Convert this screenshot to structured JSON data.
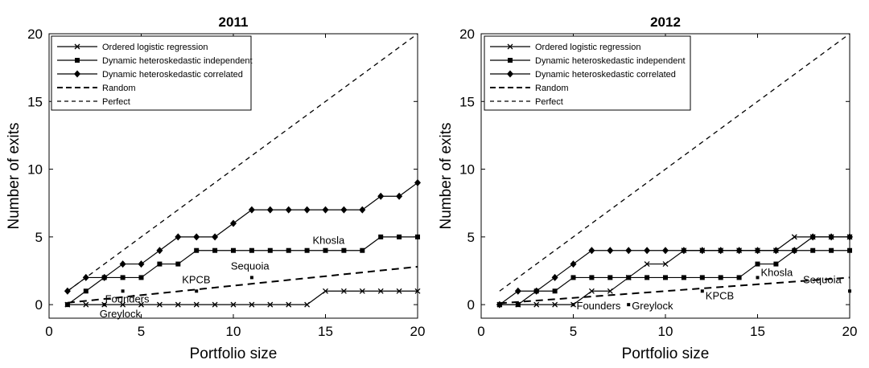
{
  "chart_data": [
    {
      "type": "line",
      "title": "2011",
      "xlabel": "Portfolio size",
      "ylabel": "Number of exits",
      "xlim": [
        0,
        20
      ],
      "ylim": [
        -1,
        20
      ],
      "xticks": [
        "0",
        "5",
        "10",
        "15",
        "20"
      ],
      "yticks": [
        "0",
        "5",
        "10",
        "15",
        "20"
      ],
      "legend_position": "top-left",
      "series": [
        {
          "name": "Ordered logistic regression",
          "marker": "x",
          "x": [
            1,
            2,
            3,
            4,
            5,
            6,
            7,
            8,
            9,
            10,
            11,
            12,
            13,
            14,
            15,
            16,
            17,
            18,
            19,
            20
          ],
          "y": [
            0,
            0,
            0,
            0,
            0,
            0,
            0,
            0,
            0,
            0,
            0,
            0,
            0,
            0,
            1,
            1,
            1,
            1,
            1,
            1
          ]
        },
        {
          "name": "Dynamic heteroskedastic independent",
          "marker": "square",
          "x": [
            1,
            2,
            3,
            4,
            5,
            6,
            7,
            8,
            9,
            10,
            11,
            12,
            13,
            14,
            15,
            16,
            17,
            18,
            19,
            20
          ],
          "y": [
            0,
            1,
            2,
            2,
            2,
            3,
            3,
            4,
            4,
            4,
            4,
            4,
            4,
            4,
            4,
            4,
            4,
            5,
            5,
            5
          ]
        },
        {
          "name": "Dynamic heteroskedastic correlated",
          "marker": "diamond",
          "x": [
            1,
            2,
            3,
            4,
            5,
            6,
            7,
            8,
            9,
            10,
            11,
            12,
            13,
            14,
            15,
            16,
            17,
            18,
            19,
            20
          ],
          "y": [
            1,
            2,
            2,
            3,
            3,
            4,
            5,
            5,
            5,
            6,
            7,
            7,
            7,
            7,
            7,
            7,
            7,
            8,
            8,
            9
          ]
        },
        {
          "name": "Random",
          "style": "dashed",
          "x": [
            1,
            20
          ],
          "y": [
            0.14,
            2.8
          ]
        },
        {
          "name": "Perfect",
          "style": "dashed-thin",
          "x": [
            1,
            20
          ],
          "y": [
            1,
            20
          ]
        }
      ],
      "annotations": [
        {
          "label": "Founders",
          "x": 4,
          "y": 1
        },
        {
          "label": "KPCB",
          "x": 8,
          "y": 1
        },
        {
          "label": "Sequoia",
          "x": 11,
          "y": 2
        },
        {
          "label": "Khosla",
          "x": 15,
          "y": 4
        },
        {
          "label": "Greylock",
          "x": 3,
          "y": 0
        }
      ]
    },
    {
      "type": "line",
      "title": "2012",
      "xlabel": "Portfolio size",
      "ylabel": "Number of exits",
      "xlim": [
        0,
        20
      ],
      "ylim": [
        -1,
        20
      ],
      "xticks": [
        "0",
        "5",
        "10",
        "15",
        "20"
      ],
      "yticks": [
        "0",
        "5",
        "10",
        "15",
        "20"
      ],
      "legend_position": "top-left",
      "series": [
        {
          "name": "Ordered logistic regression",
          "marker": "x",
          "x": [
            1,
            2,
            3,
            4,
            5,
            6,
            7,
            8,
            9,
            10,
            11,
            12,
            13,
            14,
            15,
            16,
            17,
            18,
            19,
            20
          ],
          "y": [
            0,
            0,
            0,
            0,
            0,
            1,
            1,
            2,
            3,
            3,
            4,
            4,
            4,
            4,
            4,
            4,
            5,
            5,
            5,
            5
          ]
        },
        {
          "name": "Dynamic heteroskedastic independent",
          "marker": "square",
          "x": [
            1,
            2,
            3,
            4,
            5,
            6,
            7,
            8,
            9,
            10,
            11,
            12,
            13,
            14,
            15,
            16,
            17,
            18,
            19,
            20
          ],
          "y": [
            0,
            0,
            1,
            1,
            2,
            2,
            2,
            2,
            2,
            2,
            2,
            2,
            2,
            2,
            3,
            3,
            4,
            4,
            4,
            4
          ]
        },
        {
          "name": "Dynamic heteroskedastic correlated",
          "marker": "diamond",
          "x": [
            1,
            2,
            3,
            4,
            5,
            6,
            7,
            8,
            9,
            10,
            11,
            12,
            13,
            14,
            15,
            16,
            17,
            18,
            19,
            20
          ],
          "y": [
            0,
            1,
            1,
            2,
            3,
            4,
            4,
            4,
            4,
            4,
            4,
            4,
            4,
            4,
            4,
            4,
            4,
            5,
            5,
            5
          ]
        },
        {
          "name": "Random",
          "style": "dashed",
          "x": [
            1,
            20
          ],
          "y": [
            0.1,
            2.0
          ]
        },
        {
          "name": "Perfect",
          "style": "dashed-thin",
          "x": [
            1,
            20
          ],
          "y": [
            1,
            20
          ]
        }
      ],
      "annotations": [
        {
          "label": "Founders",
          "x": 5,
          "y": 0
        },
        {
          "label": "Greylock",
          "x": 8,
          "y": 0
        },
        {
          "label": "KPCB",
          "x": 12,
          "y": 1
        },
        {
          "label": "Khosla",
          "x": 15,
          "y": 2
        },
        {
          "label": "Sequoia",
          "x": 20,
          "y": 1
        }
      ]
    }
  ]
}
